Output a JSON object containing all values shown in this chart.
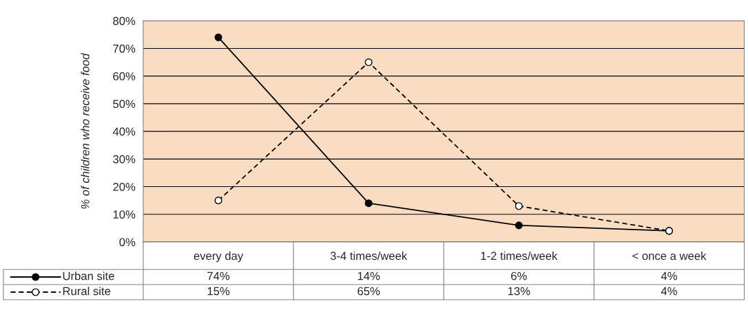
{
  "chart_data": {
    "type": "line",
    "ylabel": "% of children who receive food",
    "categories": [
      "every day",
      "3-4 times/week",
      "1-2 times/week",
      "< once a week"
    ],
    "series": [
      {
        "name": "Urban site",
        "color": "#000000",
        "values": [
          74,
          14,
          6,
          4
        ],
        "value_labels": [
          "74%",
          "14%",
          "6%",
          "4%"
        ],
        "line_style": "solid"
      },
      {
        "name": "Rural site",
        "color": "#000000",
        "values": [
          15,
          65,
          13,
          4
        ],
        "value_labels": [
          "15%",
          "65%",
          "13%",
          "4%"
        ],
        "line_style": "dashed"
      }
    ],
    "ylim": [
      0,
      80
    ],
    "yticks": [
      {
        "value": 0,
        "label": "0%"
      },
      {
        "value": 10,
        "label": "10%"
      },
      {
        "value": 20,
        "label": "20%"
      },
      {
        "value": 30,
        "label": "30%"
      },
      {
        "value": 40,
        "label": "40%"
      },
      {
        "value": 50,
        "label": "50%"
      },
      {
        "value": 60,
        "label": "60%"
      },
      {
        "value": 70,
        "label": "70%"
      },
      {
        "value": 80,
        "label": "80%"
      }
    ],
    "grid": "y",
    "marker": "circle",
    "legend": "bottom left"
  }
}
